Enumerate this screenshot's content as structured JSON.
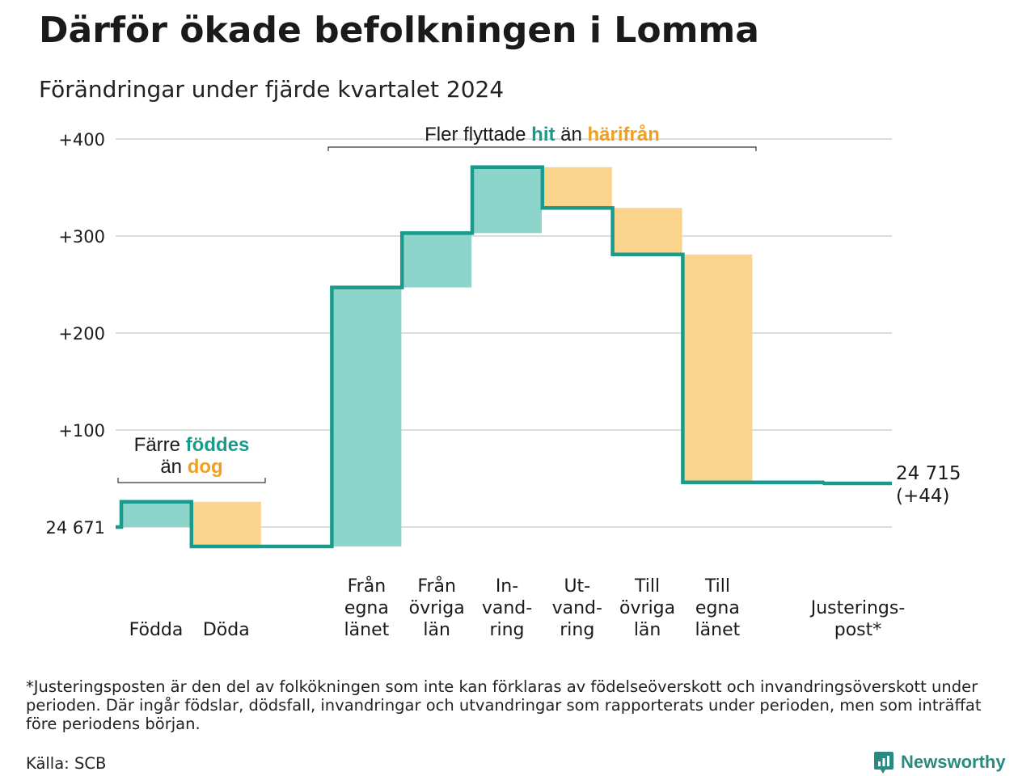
{
  "title": "Därför ökade befolkningen i Lomma",
  "subtitle": "Förändringar under fjärde kvartalet 2024",
  "colors": {
    "positive": "#8dd4ca",
    "negative": "#fad48c",
    "line": "#1a9a8c",
    "grid": "#dddddd",
    "teal_text": "#1a9a8c",
    "orange_text": "#f0a020"
  },
  "chart_data": {
    "type": "waterfall",
    "start_label": "24 671",
    "yticks": [
      {
        "value": 100,
        "label": "+100"
      },
      {
        "value": 200,
        "label": "+200"
      },
      {
        "value": 300,
        "label": "+300"
      },
      {
        "value": 400,
        "label": "+400"
      }
    ],
    "ylim": [
      -30,
      410
    ],
    "steps": [
      {
        "label": [
          "Födda"
        ],
        "change": 26,
        "kind": "pos"
      },
      {
        "label": [
          "Döda"
        ],
        "change": -46,
        "kind": "neg"
      },
      {
        "label": [],
        "change": 0,
        "kind": "gap"
      },
      {
        "label": [
          "Från",
          "egna",
          "länet"
        ],
        "change": 267,
        "kind": "pos"
      },
      {
        "label": [
          "Från",
          "övriga",
          "län"
        ],
        "change": 56,
        "kind": "pos"
      },
      {
        "label": [
          "In-",
          "vand-",
          "ring"
        ],
        "change": 68,
        "kind": "pos"
      },
      {
        "label": [
          "Ut-",
          "vand-",
          "ring"
        ],
        "change": -42,
        "kind": "neg"
      },
      {
        "label": [
          "Till",
          "övriga",
          "län"
        ],
        "change": -48,
        "kind": "neg"
      },
      {
        "label": [
          "Till",
          "egna",
          "länet"
        ],
        "change": -235,
        "kind": "neg"
      },
      {
        "label": [],
        "change": 0,
        "kind": "gap"
      },
      {
        "label": [
          "Justerings-",
          "post*"
        ],
        "change": -1,
        "kind": "adj"
      }
    ],
    "end_label_1": "24 715",
    "end_label_2": "(+44)",
    "annotation_births": {
      "line1_a": "Färre ",
      "line1_b": "föddes",
      "line2_a": "än ",
      "line2_b": "dog"
    },
    "annotation_moves": {
      "a": "Fler flyttade ",
      "b": "hit",
      "c": " än ",
      "d": "härifrån"
    }
  },
  "footnote": "*Justeringsposten är den del av folkökningen som inte kan förklaras av födelseöverskott och invandringsöverskott under perioden. Där ingår födslar, dödsfall, invandringar och utvandringar som rapporterats under perioden, men som inträffat före periodens början.",
  "source": "Källa: SCB",
  "brand": "Newsworthy"
}
